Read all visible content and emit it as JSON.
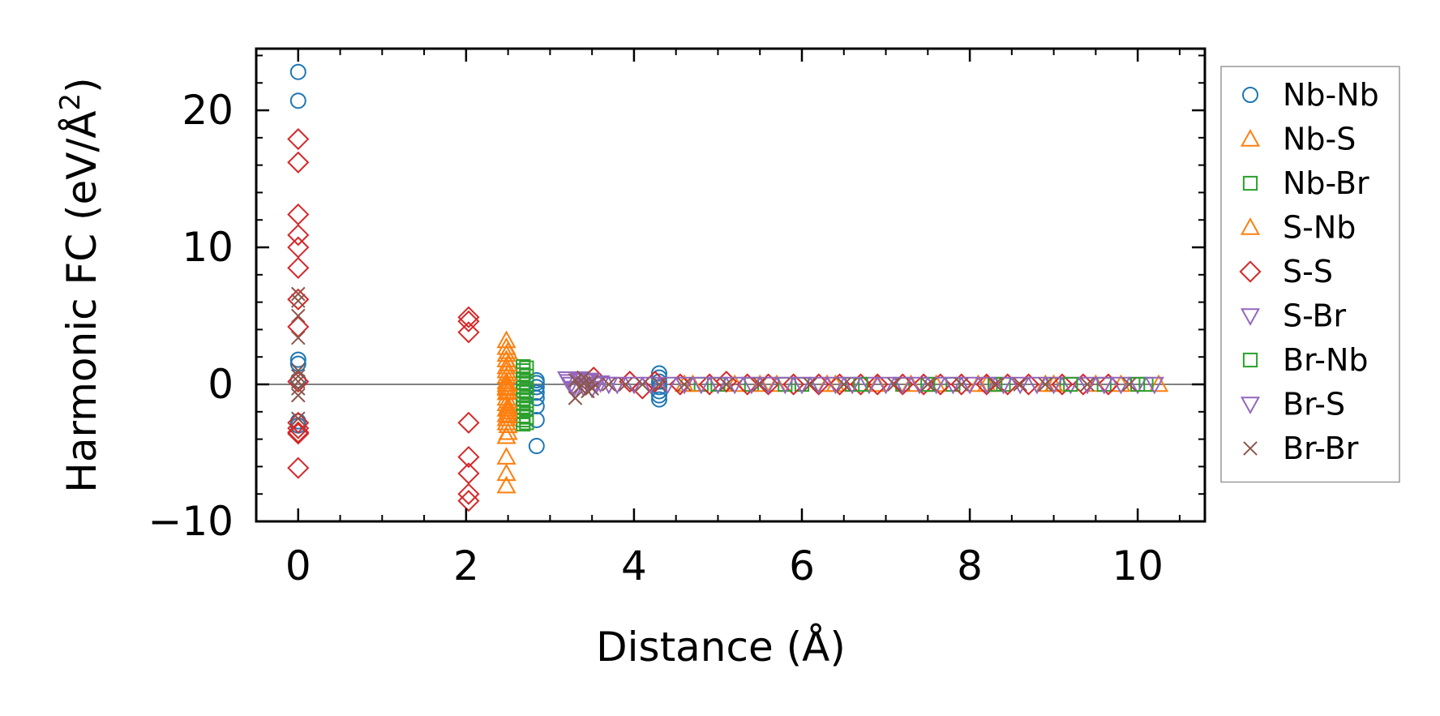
{
  "chart_data": {
    "type": "scatter",
    "title": "",
    "xlabel": "Distance (Å)",
    "ylabel": "Harmonic FC (eV/Å²)",
    "ylabel_parts": {
      "main": "Harmonic FC (eV/Å",
      "sup": "2",
      "end": ")"
    },
    "xlim": [
      -0.5,
      10.8
    ],
    "ylim": [
      -10,
      24.5
    ],
    "xticks": [
      0,
      2,
      4,
      6,
      8,
      10
    ],
    "xtick_labels": [
      "0",
      "2",
      "4",
      "6",
      "8",
      "10"
    ],
    "yticks": [
      -10,
      0,
      10,
      20
    ],
    "ytick_labels": [
      "−10",
      "0",
      "10",
      "20"
    ],
    "reference_line_y": 0,
    "grid": false,
    "legend_position": "outside-right",
    "series": [
      {
        "name": "Nb-Nb",
        "marker": "circle",
        "color": "#1f77b4",
        "x": [
          0,
          0,
          0,
          0,
          0,
          0,
          0,
          2.84,
          2.84,
          2.84,
          2.84,
          2.84,
          2.84,
          2.84,
          2.84,
          4.3,
          4.3,
          4.3,
          4.3,
          4.3,
          4.3,
          4.3
        ],
        "y": [
          22.8,
          20.7,
          1.8,
          1.5,
          0.3,
          -2.7,
          -3.0,
          0.3,
          -0.2,
          -0.6,
          -1.0,
          -1.6,
          -2.6,
          0.1,
          -4.5,
          0.8,
          0.5,
          0.2,
          -0.2,
          -0.5,
          -0.8,
          -1.1
        ]
      },
      {
        "name": "Nb-S",
        "marker": "triangle-up",
        "color": "#ff7f0e",
        "x": [
          2.48,
          2.48,
          2.48,
          2.48,
          2.48,
          2.48,
          2.48,
          2.48,
          2.48,
          2.48,
          2.48,
          2.48,
          2.48,
          2.48,
          2.48,
          2.48,
          2.48,
          2.48,
          2.48,
          2.48,
          2.48,
          2.48,
          4.6,
          5.2,
          5.7,
          6.3,
          6.9,
          7.6,
          8.2,
          8.9,
          9.5,
          10.25
        ],
        "y": [
          3.2,
          2.7,
          2.2,
          1.8,
          1.3,
          1.0,
          0.6,
          0.2,
          -0.2,
          -0.6,
          -1.0,
          -1.4,
          -1.8,
          -2.2,
          -2.5,
          -2.8,
          -3.8,
          -5.3,
          -6.5,
          -7.4,
          0.0,
          -0.3,
          0.0,
          0.0,
          0.0,
          0.0,
          0.0,
          0.0,
          0.0,
          0.0,
          0.0,
          0.0
        ]
      },
      {
        "name": "Nb-Br",
        "marker": "square",
        "color": "#2ca02c",
        "x": [
          2.68,
          2.68,
          2.68,
          2.68,
          2.68,
          2.68,
          2.68,
          2.68,
          2.68,
          2.68,
          2.68,
          2.68,
          2.68,
          2.68,
          2.68,
          4.8,
          5.4,
          6.0,
          6.6,
          7.2,
          7.8,
          8.4,
          9.0,
          9.6,
          10.1
        ],
        "y": [
          1.3,
          1.0,
          0.7,
          0.4,
          0.1,
          -0.2,
          -0.5,
          -0.8,
          -1.1,
          -1.4,
          -1.7,
          -2.0,
          -2.3,
          -2.6,
          -2.9,
          0.0,
          0.0,
          0.0,
          0.0,
          0.0,
          0.0,
          0.0,
          0.0,
          0.0,
          0.0
        ]
      },
      {
        "name": "S-Nb",
        "marker": "triangle-up",
        "color": "#ff7f0e",
        "x": [
          2.5,
          2.5,
          2.5,
          2.5,
          2.5,
          2.5,
          2.5,
          2.5,
          2.5,
          2.5,
          2.5,
          2.5,
          4.7,
          5.5,
          6.4,
          7.3,
          8.1,
          9.0,
          9.8
        ],
        "y": [
          2.4,
          1.5,
          0.8,
          0.0,
          -0.5,
          -1.2,
          -1.6,
          -2.0,
          -2.3,
          -3.0,
          -3.5,
          -1.8,
          0.0,
          0.0,
          0.0,
          0.0,
          0.0,
          0.0,
          0.0
        ]
      },
      {
        "name": "S-S",
        "marker": "diamond",
        "color": "#d62728",
        "x": [
          0,
          0,
          0,
          0,
          0,
          0,
          0,
          0,
          0,
          0,
          0,
          0,
          0,
          0,
          2.03,
          2.03,
          2.03,
          2.03,
          2.03,
          2.03,
          2.03,
          2.03,
          3.52,
          3.95,
          4.1,
          4.25,
          4.55,
          4.9,
          5.1,
          5.35,
          5.6,
          5.9,
          6.2,
          6.45,
          6.7,
          6.9,
          7.2,
          7.45,
          7.65,
          7.9,
          8.2,
          8.45,
          8.7,
          9.1,
          9.35,
          9.65
        ],
        "y": [
          17.9,
          16.2,
          12.4,
          10.9,
          10.0,
          8.5,
          6.2,
          4.2,
          0.2,
          -2.8,
          -3.2,
          -3.5,
          -3.6,
          -6.1,
          4.9,
          4.6,
          3.8,
          -2.8,
          -5.3,
          -6.5,
          -8.0,
          -8.5,
          0.5,
          0.2,
          -0.3,
          0.2,
          0.0,
          0.0,
          0.2,
          0.0,
          0.0,
          0.0,
          0.0,
          0.0,
          0.0,
          0.0,
          0.0,
          0.0,
          0.0,
          0.0,
          0.0,
          0.0,
          0.0,
          0.0,
          0.0,
          0.0
        ]
      },
      {
        "name": "S-Br",
        "marker": "triangle-down",
        "color": "#9467bd",
        "x": [
          3.2,
          3.25,
          3.3,
          3.35,
          3.4,
          3.45,
          3.5,
          3.6,
          3.7,
          3.8,
          4.0,
          4.4,
          4.8,
          5.2,
          5.6,
          6.0,
          6.4,
          6.8,
          7.2,
          7.6,
          8.0,
          8.4,
          8.8,
          9.2,
          9.6,
          10.0
        ],
        "y": [
          0.4,
          0.0,
          -0.4,
          0.3,
          -0.2,
          0.2,
          -0.3,
          0.1,
          0.0,
          0.0,
          0.0,
          0.0,
          0.0,
          0.0,
          0.0,
          0.0,
          0.0,
          0.0,
          0.0,
          0.0,
          0.0,
          0.0,
          0.0,
          0.0,
          0.0,
          0.0
        ]
      },
      {
        "name": "Br-Nb",
        "marker": "square",
        "color": "#2ca02c",
        "x": [
          2.72,
          2.72,
          2.72,
          2.72,
          2.72,
          2.72,
          2.72,
          2.72,
          5.0,
          5.8,
          6.7,
          7.5,
          8.3,
          9.2,
          10.0
        ],
        "y": [
          1.2,
          0.6,
          0.0,
          -0.6,
          -1.2,
          -1.8,
          -2.4,
          -2.8,
          0.0,
          0.0,
          0.0,
          0.0,
          0.0,
          0.0,
          0.0
        ]
      },
      {
        "name": "Br-S",
        "marker": "triangle-down",
        "color": "#9467bd",
        "x": [
          3.22,
          3.28,
          3.36,
          3.42,
          3.48,
          3.55,
          4.2,
          4.6,
          5.0,
          5.4,
          5.8,
          6.2,
          6.6,
          7.0,
          7.4,
          7.8,
          8.2,
          8.6,
          9.0,
          9.4,
          9.8,
          10.2
        ],
        "y": [
          0.2,
          -0.3,
          0.4,
          -0.1,
          0.3,
          0.0,
          0.0,
          0.0,
          0.0,
          0.0,
          0.0,
          0.0,
          0.0,
          0.0,
          0.0,
          0.0,
          0.0,
          0.0,
          0.0,
          0.0,
          0.0,
          0.0
        ]
      },
      {
        "name": "Br-Br",
        "marker": "x",
        "color": "#8c564b",
        "x": [
          0,
          0,
          0,
          0,
          0,
          0,
          0,
          0,
          0,
          0,
          3.3,
          3.35,
          3.4,
          3.45,
          3.5,
          3.3,
          3.4,
          3.5,
          3.7,
          3.9,
          4.1,
          4.3,
          4.6,
          5.1,
          5.5,
          6.1,
          6.5,
          7.1,
          7.5,
          7.9,
          8.3,
          8.6,
          8.9,
          9.4,
          9.9
        ],
        "y": [
          6.6,
          6.1,
          3.4,
          1.0,
          0.6,
          0.2,
          -0.3,
          -0.8,
          -2.5,
          5.0,
          0.3,
          -0.2,
          0.1,
          -0.5,
          0.2,
          -1.0,
          0.5,
          -0.3,
          0.0,
          0.0,
          0.0,
          0.0,
          0.0,
          0.0,
          0.0,
          0.0,
          0.0,
          0.0,
          0.0,
          0.0,
          0.0,
          0.0,
          0.0,
          0.0,
          0.0
        ]
      }
    ]
  }
}
